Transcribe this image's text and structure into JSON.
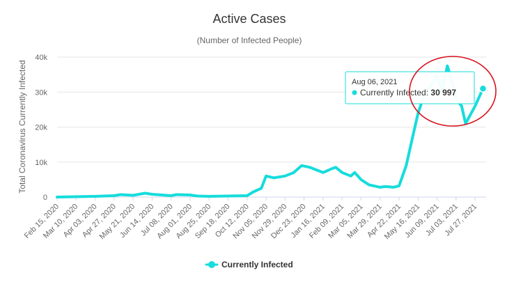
{
  "chart_data": {
    "type": "line",
    "title": "Active Cases",
    "subtitle": "(Number of Infected People)",
    "ylabel": "Total Coronavirus Currently Infected",
    "xlabel": "",
    "ylim": [
      0,
      40000
    ],
    "yticks": [
      0,
      10000,
      20000,
      30000,
      40000
    ],
    "ytick_labels": [
      "0",
      "10k",
      "20k",
      "30k",
      "40k"
    ],
    "xlim": [
      "2020-02-15",
      "2021-08-10"
    ],
    "xtick_dates": [
      "2020-02-15",
      "2020-03-10",
      "2020-04-03",
      "2020-04-27",
      "2020-05-21",
      "2020-06-14",
      "2020-07-08",
      "2020-08-01",
      "2020-08-25",
      "2020-09-18",
      "2020-10-12",
      "2020-11-05",
      "2020-11-29",
      "2020-12-23",
      "2021-01-16",
      "2021-02-09",
      "2021-03-05",
      "2021-03-29",
      "2021-04-22",
      "2021-05-16",
      "2021-06-09",
      "2021-07-03",
      "2021-07-27"
    ],
    "xtick_labels": [
      "Feb 15, 2020",
      "Mar 10, 2020",
      "Apr 03, 2020",
      "Apr 27, 2020",
      "May 21, 2020",
      "Jun 14, 2020",
      "Jul 08, 2020",
      "Aug 01, 2020",
      "Aug 25, 2020",
      "Sep 18, 2020",
      "Oct 12, 2020",
      "Nov 05, 2020",
      "Nov 29, 2020",
      "Dec 23, 2020",
      "Jan 16, 2021",
      "Feb 09, 2021",
      "Mar 05, 2021",
      "Mar 29, 2021",
      "Apr 22, 2021",
      "May 16, 2021",
      "Jun 09, 2021",
      "Jul 03, 2021",
      "Jul 27, 2021"
    ],
    "grid": true,
    "legend_position": "bottom-center",
    "series": [
      {
        "name": "Currently Infected",
        "color": "#16dcdc",
        "points": [
          [
            "2020-02-15",
            0
          ],
          [
            "2020-03-10",
            100
          ],
          [
            "2020-04-03",
            200
          ],
          [
            "2020-04-27",
            400
          ],
          [
            "2020-05-05",
            700
          ],
          [
            "2020-05-21",
            500
          ],
          [
            "2020-06-05",
            1100
          ],
          [
            "2020-06-14",
            800
          ],
          [
            "2020-07-08",
            400
          ],
          [
            "2020-07-15",
            700
          ],
          [
            "2020-08-01",
            600
          ],
          [
            "2020-08-10",
            300
          ],
          [
            "2020-08-25",
            200
          ],
          [
            "2020-09-18",
            300
          ],
          [
            "2020-10-12",
            400
          ],
          [
            "2020-10-20",
            1500
          ],
          [
            "2020-10-30",
            2500
          ],
          [
            "2020-11-05",
            6000
          ],
          [
            "2020-11-15",
            5500
          ],
          [
            "2020-11-29",
            6000
          ],
          [
            "2020-12-10",
            7000
          ],
          [
            "2020-12-20",
            9000
          ],
          [
            "2020-12-30",
            8500
          ],
          [
            "2021-01-16",
            7000
          ],
          [
            "2021-01-26",
            8000
          ],
          [
            "2021-02-01",
            8500
          ],
          [
            "2021-02-09",
            7000
          ],
          [
            "2021-02-20",
            6000
          ],
          [
            "2021-02-25",
            7000
          ],
          [
            "2021-03-05",
            5000
          ],
          [
            "2021-03-15",
            3500
          ],
          [
            "2021-03-29",
            2800
          ],
          [
            "2021-04-05",
            3000
          ],
          [
            "2021-04-15",
            2800
          ],
          [
            "2021-04-22",
            3200
          ],
          [
            "2021-05-01",
            9000
          ],
          [
            "2021-05-10",
            18000
          ],
          [
            "2021-05-16",
            24000
          ],
          [
            "2021-05-25",
            30000
          ],
          [
            "2021-06-02",
            32000
          ],
          [
            "2021-06-09",
            35000
          ],
          [
            "2021-06-15",
            30000
          ],
          [
            "2021-06-22",
            37500
          ],
          [
            "2021-06-28",
            33000
          ],
          [
            "2021-07-03",
            28000
          ],
          [
            "2021-07-10",
            26000
          ],
          [
            "2021-07-15",
            21000
          ],
          [
            "2021-07-27",
            26000
          ],
          [
            "2021-08-06",
            30997
          ]
        ]
      }
    ],
    "tooltip": {
      "date": "Aug 06, 2021",
      "series_label": "Currently Infected: ",
      "value_text": "30 997",
      "value": 30997
    },
    "annotation": {
      "shape": "ellipse",
      "color": "#d8121e"
    }
  }
}
